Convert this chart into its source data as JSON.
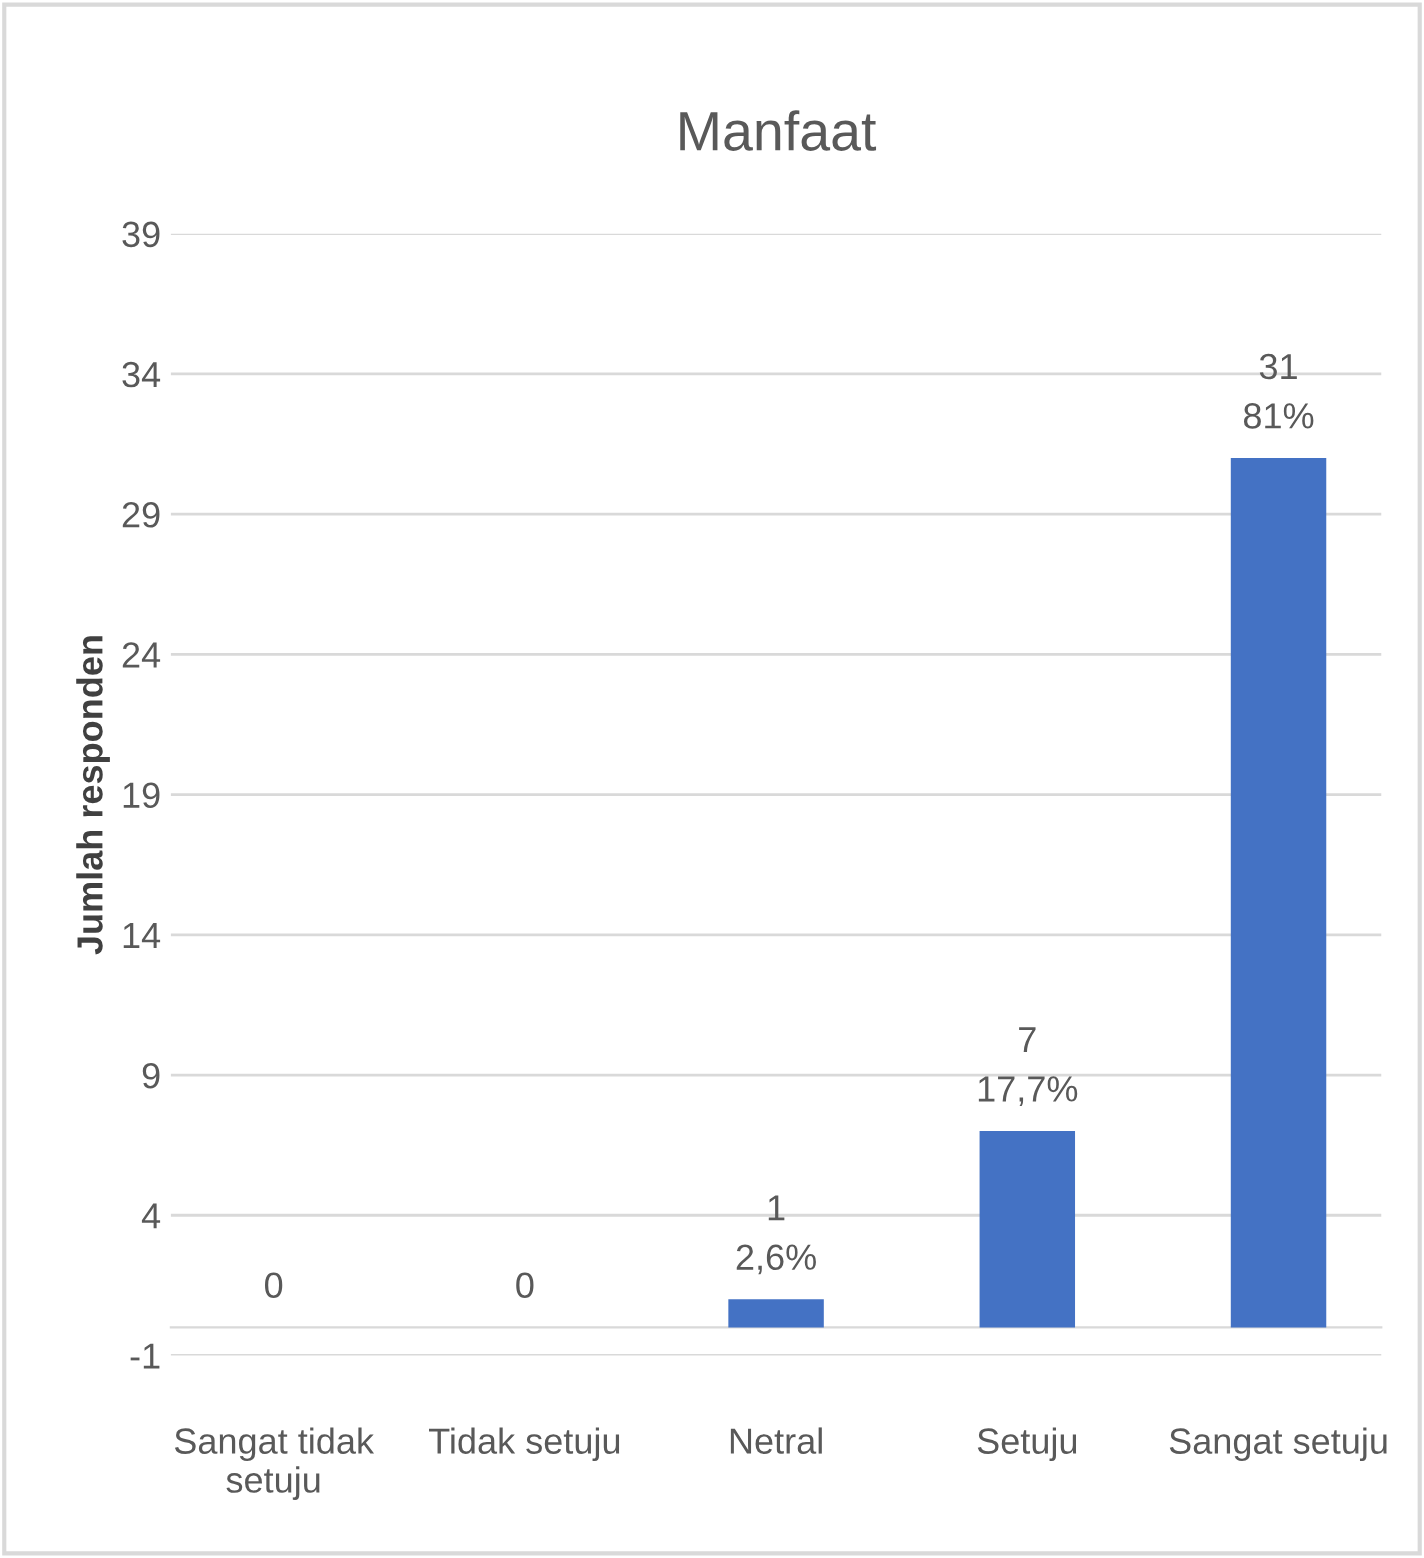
{
  "chart_data": {
    "type": "bar",
    "title": "Manfaat",
    "ylabel": "Jumlah responden",
    "categories": [
      "Sangat tidak\nsetuju",
      "Tidak setuju",
      "Netral",
      "Setuju",
      "Sangat setuju"
    ],
    "values": [
      0,
      0,
      1,
      7,
      31
    ],
    "value_labels": [
      "0",
      "0",
      "1\n2,6%",
      "7\n17,7%",
      "31\n81%"
    ],
    "color": "#4472c4",
    "ylim": [
      -1,
      39
    ],
    "yticks": [
      -1,
      4,
      9,
      14,
      19,
      24,
      29,
      34,
      39
    ],
    "grid": "y",
    "legend": false
  }
}
